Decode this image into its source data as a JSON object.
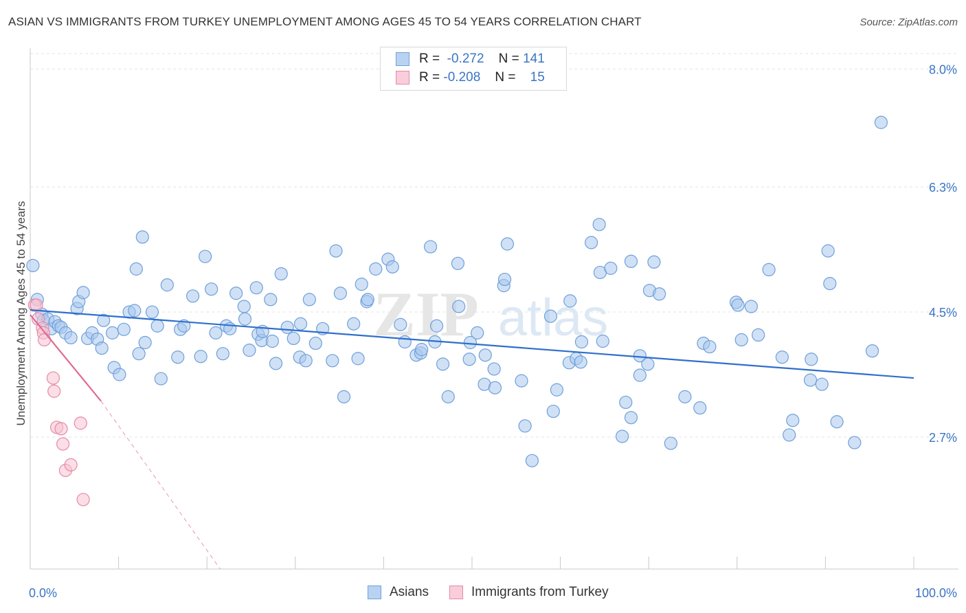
{
  "title": "ASIAN VS IMMIGRANTS FROM TURKEY UNEMPLOYMENT AMONG AGES 45 TO 54 YEARS CORRELATION CHART",
  "source": "Source: ZipAtlas.com",
  "watermark": "ZIPatlas",
  "legend": {
    "rows": [
      {
        "r_label": "R =",
        "r_value": "-0.272",
        "n_label": "N =",
        "n_value": "141",
        "color": "#a9c8ef"
      },
      {
        "r_label": "R =",
        "r_value": "-0.208",
        "n_label": "N =",
        "n_value": "15",
        "color": "#f7b8ca"
      }
    ]
  },
  "bottom_legend": [
    {
      "label": "Asians",
      "color": "#a9c8ef",
      "border": "#6f9fd8"
    },
    {
      "label": "Immigrants from Turkey",
      "color": "#f7c2d2",
      "border": "#e48aa8"
    }
  ],
  "chart_data": {
    "type": "scatter",
    "title": "ASIAN VS IMMIGRANTS FROM TURKEY UNEMPLOYMENT AMONG AGES 45 TO 54 YEARS CORRELATION CHART",
    "xlabel": "",
    "ylabel": "Unemployment Among Ages 45 to 54 years",
    "xlim": [
      0,
      100
    ],
    "ylim": [
      0.8,
      8.3
    ],
    "x_tick_labels": [
      "0.0%",
      "100.0%"
    ],
    "y_ticks": [
      2.7,
      4.5,
      6.3,
      8.0
    ],
    "y_tick_labels": [
      "2.7%",
      "4.5%",
      "6.3%",
      "8.0%"
    ],
    "series": [
      {
        "name": "Asians",
        "color": "#a9c8ef",
        "stroke": "#6f9fd8",
        "trend": {
          "x": [
            0,
            100
          ],
          "y": [
            4.53,
            3.55
          ],
          "color": "#2f6fcc"
        },
        "points": [
          [
            0.3,
            5.17
          ],
          [
            0.8,
            4.68
          ],
          [
            1.3,
            4.47
          ],
          [
            1.5,
            4.38
          ],
          [
            2,
            4.4
          ],
          [
            2.4,
            4.26
          ],
          [
            2.8,
            4.36
          ],
          [
            3.2,
            4.3
          ],
          [
            3.5,
            4.28
          ],
          [
            4,
            4.2
          ],
          [
            4.6,
            4.13
          ],
          [
            5.3,
            4.55
          ],
          [
            5.5,
            4.65
          ],
          [
            6,
            4.78
          ],
          [
            6.5,
            4.12
          ],
          [
            7,
            4.2
          ],
          [
            7.6,
            4.11
          ],
          [
            8.1,
            3.98
          ],
          [
            8.3,
            4.38
          ],
          [
            9.3,
            4.2
          ],
          [
            9.5,
            3.7
          ],
          [
            10.1,
            3.6
          ],
          [
            10.6,
            4.25
          ],
          [
            11.2,
            4.5
          ],
          [
            11.8,
            4.52
          ],
          [
            12,
            5.12
          ],
          [
            12.3,
            3.9
          ],
          [
            12.7,
            5.58
          ],
          [
            13,
            4.06
          ],
          [
            13.8,
            4.5
          ],
          [
            14.4,
            4.3
          ],
          [
            14.8,
            3.54
          ],
          [
            15.5,
            4.89
          ],
          [
            16.7,
            3.85
          ],
          [
            17,
            4.25
          ],
          [
            17.4,
            4.3
          ],
          [
            18.4,
            4.73
          ],
          [
            19.3,
            3.86
          ],
          [
            19.8,
            5.3
          ],
          [
            20.5,
            4.83
          ],
          [
            21,
            4.2
          ],
          [
            21.8,
            3.9
          ],
          [
            22.2,
            4.3
          ],
          [
            22.6,
            4.26
          ],
          [
            23.3,
            4.77
          ],
          [
            24.2,
            4.58
          ],
          [
            24.3,
            4.4
          ],
          [
            24.8,
            3.95
          ],
          [
            25.6,
            4.85
          ],
          [
            25.8,
            4.18
          ],
          [
            26.2,
            4.09
          ],
          [
            26.3,
            4.22
          ],
          [
            27.2,
            4.68
          ],
          [
            27.4,
            4.08
          ],
          [
            27.8,
            3.76
          ],
          [
            28.4,
            5.05
          ],
          [
            29.1,
            4.28
          ],
          [
            29.8,
            4.12
          ],
          [
            30.5,
            3.85
          ],
          [
            30.6,
            4.33
          ],
          [
            31.2,
            3.8
          ],
          [
            31.6,
            4.68
          ],
          [
            32.3,
            4.05
          ],
          [
            33.1,
            4.26
          ],
          [
            34.2,
            3.8
          ],
          [
            34.6,
            5.38
          ],
          [
            35.1,
            4.77
          ],
          [
            35.5,
            3.28
          ],
          [
            36.6,
            4.33
          ],
          [
            37.1,
            3.83
          ],
          [
            37.5,
            4.9
          ],
          [
            38.1,
            4.65
          ],
          [
            38.2,
            4.68
          ],
          [
            39.1,
            5.12
          ],
          [
            40.5,
            5.26
          ],
          [
            41,
            5.15
          ],
          [
            41.9,
            4.32
          ],
          [
            42.4,
            4.07
          ],
          [
            43.7,
            3.88
          ],
          [
            44.2,
            3.91
          ],
          [
            44.3,
            3.96
          ],
          [
            45.3,
            5.44
          ],
          [
            45.8,
            4.07
          ],
          [
            46,
            4.3
          ],
          [
            46.7,
            3.75
          ],
          [
            47.3,
            3.28
          ],
          [
            48.4,
            5.2
          ],
          [
            48.5,
            4.58
          ],
          [
            49.7,
            3.82
          ],
          [
            49.8,
            4.06
          ],
          [
            50.6,
            4.2
          ],
          [
            51.4,
            3.46
          ],
          [
            51.5,
            3.88
          ],
          [
            52.5,
            3.68
          ],
          [
            52.6,
            3.41
          ],
          [
            53.6,
            4.88
          ],
          [
            53.7,
            4.97
          ],
          [
            54,
            5.48
          ],
          [
            55.6,
            3.51
          ],
          [
            56,
            2.86
          ],
          [
            56.8,
            2.36
          ],
          [
            58.9,
            4.44
          ],
          [
            59.2,
            3.07
          ],
          [
            59.6,
            3.38
          ],
          [
            61,
            3.77
          ],
          [
            61.1,
            4.66
          ],
          [
            61.8,
            3.83
          ],
          [
            62.3,
            3.78
          ],
          [
            62.4,
            4.07
          ],
          [
            63.5,
            5.5
          ],
          [
            64.4,
            5.76
          ],
          [
            64.5,
            5.07
          ],
          [
            64.8,
            4.08
          ],
          [
            65.7,
            5.13
          ],
          [
            67,
            2.71
          ],
          [
            67.4,
            3.2
          ],
          [
            68,
            2.98
          ],
          [
            68,
            5.23
          ],
          [
            69,
            3.59
          ],
          [
            69,
            3.87
          ],
          [
            69.9,
            3.75
          ],
          [
            70.1,
            4.81
          ],
          [
            70.6,
            5.22
          ],
          [
            71.2,
            4.76
          ],
          [
            72.5,
            2.61
          ],
          [
            74.1,
            3.28
          ],
          [
            75.8,
            3.12
          ],
          [
            76.2,
            4.05
          ],
          [
            76.9,
            4.0
          ],
          [
            79.9,
            4.64
          ],
          [
            80.1,
            4.6
          ],
          [
            80.5,
            4.1
          ],
          [
            81.6,
            4.58
          ],
          [
            82.4,
            4.17
          ],
          [
            83.6,
            5.11
          ],
          [
            85.1,
            3.85
          ],
          [
            85.9,
            2.73
          ],
          [
            86.3,
            2.94
          ],
          [
            88.3,
            3.52
          ],
          [
            88.4,
            3.82
          ],
          [
            89.6,
            3.46
          ],
          [
            90.3,
            5.38
          ],
          [
            90.5,
            4.91
          ],
          [
            91.3,
            2.92
          ],
          [
            93.3,
            2.62
          ],
          [
            95.3,
            3.94
          ],
          [
            96.3,
            7.23
          ]
        ]
      },
      {
        "name": "Immigrants from Turkey",
        "color": "#f7c2d2",
        "stroke": "#e48aa8",
        "trend": {
          "x": [
            0,
            8.0
          ],
          "y": [
            4.46,
            3.22
          ],
          "dashed_to": [
            21.5,
            0.8
          ],
          "color": "#e06a92"
        },
        "points": [
          [
            0.5,
            4.6
          ],
          [
            0.7,
            4.6
          ],
          [
            0.9,
            4.4
          ],
          [
            1.4,
            4.27
          ],
          [
            1.5,
            4.2
          ],
          [
            1.6,
            4.1
          ],
          [
            2.6,
            3.55
          ],
          [
            2.7,
            3.36
          ],
          [
            3.0,
            2.84
          ],
          [
            3.5,
            2.82
          ],
          [
            3.7,
            2.6
          ],
          [
            4.0,
            2.22
          ],
          [
            4.6,
            2.3
          ],
          [
            6.0,
            1.8
          ],
          [
            5.7,
            2.9
          ]
        ]
      }
    ]
  }
}
